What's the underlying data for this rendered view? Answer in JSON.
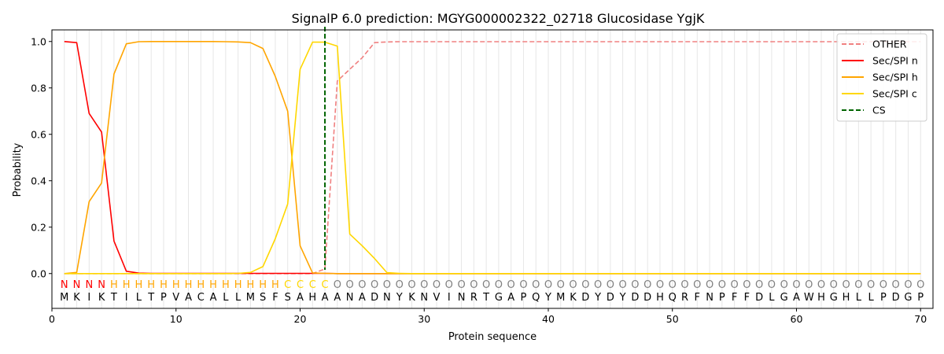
{
  "chart_data": {
    "type": "line",
    "title": "SignalP 6.0 prediction: MGYG000002322_02718 Glucosidase YgjK",
    "xlabel": "Protein sequence",
    "ylabel": "Probability",
    "xlim": [
      0,
      71
    ],
    "ylim": [
      -0.15,
      1.05
    ],
    "xticks": [
      0,
      10,
      20,
      30,
      40,
      50,
      60,
      70
    ],
    "yticks": [
      0.0,
      0.2,
      0.4,
      0.6,
      0.8,
      1.0
    ],
    "xtick_labels": [
      "0",
      "10",
      "20",
      "30",
      "40",
      "50",
      "60",
      "70"
    ],
    "ytick_labels": [
      "0.0",
      "0.2",
      "0.4",
      "0.6",
      "0.8",
      "1.0"
    ],
    "legend_position": "top-right",
    "sequence": [
      "M",
      "K",
      "I",
      "K",
      "T",
      "I",
      "L",
      "T",
      "P",
      "V",
      "A",
      "C",
      "A",
      "L",
      "L",
      "M",
      "S",
      "F",
      "S",
      "A",
      "H",
      "A",
      "A",
      "N",
      "A",
      "D",
      "N",
      "Y",
      "K",
      "N",
      "V",
      "I",
      "N",
      "R",
      "T",
      "G",
      "A",
      "P",
      "Q",
      "Y",
      "M",
      "K",
      "D",
      "Y",
      "D",
      "Y",
      "D",
      "D",
      "H",
      "Q",
      "R",
      "F",
      "N",
      "P",
      "F",
      "F",
      "D",
      "L",
      "G",
      "A",
      "W",
      "H",
      "G",
      "H",
      "L",
      "L",
      "P",
      "D",
      "G",
      "P"
    ],
    "region_labels": [
      "N",
      "N",
      "N",
      "N",
      "H",
      "H",
      "H",
      "H",
      "H",
      "H",
      "H",
      "H",
      "H",
      "H",
      "H",
      "H",
      "H",
      "H",
      "C",
      "C",
      "C",
      "C",
      "O",
      "O",
      "O",
      "O",
      "O",
      "O",
      "O",
      "O",
      "O",
      "O",
      "O",
      "O",
      "O",
      "O",
      "O",
      "O",
      "O",
      "O",
      "O",
      "O",
      "O",
      "O",
      "O",
      "O",
      "O",
      "O",
      "O",
      "O",
      "O",
      "O",
      "O",
      "O",
      "O",
      "O",
      "O",
      "O",
      "O",
      "O",
      "O",
      "O",
      "O",
      "O",
      "O",
      "O",
      "O",
      "O",
      "O",
      "O"
    ],
    "region_colors": {
      "N": "#ff0000",
      "H": "#ffa500",
      "C": "#ffd700",
      "O": "#808080"
    },
    "cleavage_site": 22,
    "series": [
      {
        "name": "OTHER",
        "color": "#f08080",
        "dash": true,
        "values": [
          0,
          0,
          0,
          0,
          0,
          0,
          0,
          0,
          0,
          0,
          0,
          0,
          0,
          0,
          0,
          0,
          0,
          0,
          0,
          0,
          0,
          0.02,
          0.83,
          0.88,
          0.93,
          0.995,
          0.998,
          0.999,
          0.999,
          0.999,
          0.999,
          0.999,
          0.999,
          0.999,
          0.999,
          0.999,
          0.999,
          0.999,
          0.999,
          0.999,
          0.999,
          0.999,
          0.999,
          0.999,
          0.999,
          0.999,
          0.999,
          0.999,
          0.999,
          0.999,
          0.999,
          0.999,
          0.999,
          0.999,
          0.999,
          0.999,
          0.999,
          0.999,
          0.999,
          0.999,
          0.999,
          0.999,
          0.999,
          0.999,
          0.999,
          0.999,
          0.999,
          0.999,
          0.999,
          0.999
        ]
      },
      {
        "name": "Sec/SPI n",
        "color": "#ff0000",
        "dash": false,
        "values": [
          1.0,
          0.995,
          0.69,
          0.61,
          0.14,
          0.01,
          0.002,
          0.001,
          0.001,
          0.001,
          0.001,
          0.001,
          0.001,
          0.001,
          0.001,
          0.001,
          0.001,
          0.001,
          0.001,
          0.001,
          0.001,
          0.001,
          0,
          0,
          0,
          0,
          0,
          0,
          0,
          0,
          0,
          0,
          0,
          0,
          0,
          0,
          0,
          0,
          0,
          0,
          0,
          0,
          0,
          0,
          0,
          0,
          0,
          0,
          0,
          0,
          0,
          0,
          0,
          0,
          0,
          0,
          0,
          0,
          0,
          0,
          0,
          0,
          0,
          0,
          0,
          0,
          0,
          0,
          0,
          0
        ]
      },
      {
        "name": "Sec/SPI h",
        "color": "#ffa500",
        "dash": false,
        "values": [
          0,
          0.005,
          0.31,
          0.39,
          0.86,
          0.99,
          0.999,
          1.0,
          1.0,
          1.0,
          1.0,
          1.0,
          1.0,
          0.999,
          0.998,
          0.995,
          0.97,
          0.85,
          0.7,
          0.12,
          0.003,
          0.001,
          0,
          0,
          0,
          0,
          0,
          0,
          0,
          0,
          0,
          0,
          0,
          0,
          0,
          0,
          0,
          0,
          0,
          0,
          0,
          0,
          0,
          0,
          0,
          0,
          0,
          0,
          0,
          0,
          0,
          0,
          0,
          0,
          0,
          0,
          0,
          0,
          0,
          0,
          0,
          0,
          0,
          0,
          0,
          0,
          0,
          0,
          0,
          0
        ]
      },
      {
        "name": "Sec/SPI c",
        "color": "#ffd700",
        "dash": false,
        "values": [
          0,
          0,
          0,
          0,
          0,
          0,
          0,
          0,
          0,
          0,
          0,
          0,
          0,
          0,
          0.001,
          0.005,
          0.03,
          0.15,
          0.3,
          0.88,
          0.997,
          0.997,
          0.98,
          0.17,
          0.12,
          0.065,
          0.004,
          0.001,
          0,
          0,
          0,
          0,
          0,
          0,
          0,
          0,
          0,
          0,
          0,
          0,
          0,
          0,
          0,
          0,
          0,
          0,
          0,
          0,
          0,
          0,
          0,
          0,
          0,
          0,
          0,
          0,
          0,
          0,
          0,
          0,
          0,
          0,
          0,
          0,
          0,
          0,
          0,
          0,
          0,
          0
        ]
      },
      {
        "name": "CS",
        "color": "#006400",
        "dash": true,
        "vertical_at": 22
      }
    ]
  }
}
